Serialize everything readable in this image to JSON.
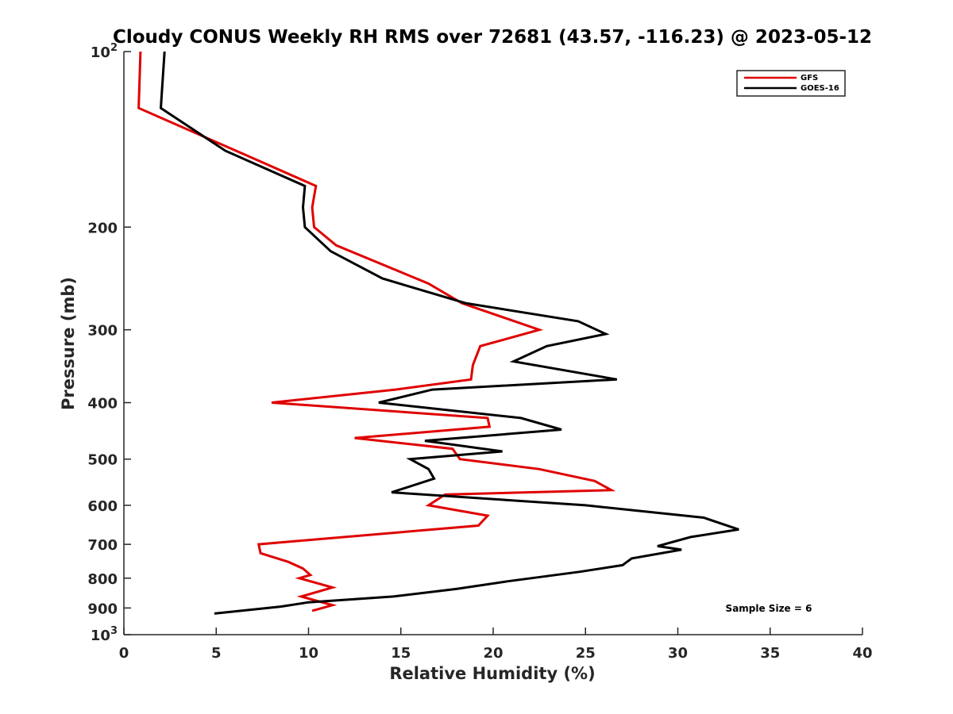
{
  "chart_data": {
    "type": "line",
    "title": "Cloudy CONUS Weekly RH RMS over 72681 (43.57, -116.23) @ 2023-05-12",
    "xlabel": "Relative Humidity (%)",
    "ylabel": "Pressure (mb)",
    "xlim": [
      0,
      40
    ],
    "ylim": [
      100,
      1000
    ],
    "y_scale": "log",
    "y_reversed": true,
    "x_ticks": [
      0,
      5,
      10,
      15,
      20,
      25,
      30,
      35,
      40
    ],
    "x_tick_labels": [
      "0",
      "5",
      "10",
      "15",
      "20",
      "25",
      "30",
      "35",
      "40"
    ],
    "y_ticks": [
      100,
      200,
      300,
      400,
      500,
      600,
      700,
      800,
      900,
      1000
    ],
    "y_tick_labels": [
      {
        "base": "10",
        "exp": "2"
      },
      {
        "base": "200",
        "exp": ""
      },
      {
        "base": "300",
        "exp": ""
      },
      {
        "base": "400",
        "exp": ""
      },
      {
        "base": "500",
        "exp": ""
      },
      {
        "base": "600",
        "exp": ""
      },
      {
        "base": "700",
        "exp": ""
      },
      {
        "base": "800",
        "exp": ""
      },
      {
        "base": "900",
        "exp": ""
      },
      {
        "base": "10",
        "exp": "3"
      }
    ],
    "grid": false,
    "legend_position": "top-right",
    "annotation": "Sample Size = 6",
    "series": [
      {
        "name": "GFS",
        "color": "#e00000",
        "points": [
          [
            0.9,
            100
          ],
          [
            0.8,
            125
          ],
          [
            6.5,
            150
          ],
          [
            10.4,
            170
          ],
          [
            10.2,
            185
          ],
          [
            10.3,
            200
          ],
          [
            11.5,
            215
          ],
          [
            16.5,
            250
          ],
          [
            18.3,
            270
          ],
          [
            22.5,
            300
          ],
          [
            19.3,
            320
          ],
          [
            18.9,
            345
          ],
          [
            18.8,
            365
          ],
          [
            14.7,
            380
          ],
          [
            8.0,
            400
          ],
          [
            19.7,
            425
          ],
          [
            19.8,
            440
          ],
          [
            12.5,
            460
          ],
          [
            17.8,
            480
          ],
          [
            18.2,
            500
          ],
          [
            22.5,
            520
          ],
          [
            25.5,
            545
          ],
          [
            26.4,
            565
          ],
          [
            17.4,
            575
          ],
          [
            16.5,
            600
          ],
          [
            19.7,
            625
          ],
          [
            19.2,
            650
          ],
          [
            7.3,
            700
          ],
          [
            7.4,
            725
          ],
          [
            8.9,
            750
          ],
          [
            9.7,
            770
          ],
          [
            10.1,
            790
          ],
          [
            9.5,
            800
          ],
          [
            11.3,
            830
          ],
          [
            9.6,
            860
          ],
          [
            11.3,
            890
          ],
          [
            10.2,
            910
          ]
        ]
      },
      {
        "name": "GOES-16",
        "color": "#000000",
        "points": [
          [
            2.2,
            100
          ],
          [
            2.0,
            125
          ],
          [
            5.5,
            148
          ],
          [
            9.8,
            170
          ],
          [
            9.7,
            185
          ],
          [
            9.8,
            200
          ],
          [
            11.2,
            220
          ],
          [
            14.0,
            245
          ],
          [
            18.5,
            270
          ],
          [
            24.6,
            290
          ],
          [
            26.1,
            305
          ],
          [
            22.9,
            320
          ],
          [
            21.1,
            340
          ],
          [
            26.7,
            365
          ],
          [
            16.7,
            380
          ],
          [
            13.8,
            400
          ],
          [
            21.5,
            425
          ],
          [
            23.7,
            445
          ],
          [
            16.3,
            465
          ],
          [
            20.5,
            485
          ],
          [
            15.5,
            500
          ],
          [
            16.5,
            520
          ],
          [
            16.8,
            540
          ],
          [
            14.5,
            570
          ],
          [
            25.0,
            600
          ],
          [
            31.4,
            630
          ],
          [
            33.3,
            660
          ],
          [
            30.7,
            680
          ],
          [
            28.9,
            705
          ],
          [
            30.2,
            715
          ],
          [
            27.5,
            740
          ],
          [
            27.0,
            760
          ],
          [
            24.7,
            780
          ],
          [
            20.8,
            810
          ],
          [
            18.0,
            835
          ],
          [
            14.6,
            860
          ],
          [
            10.0,
            880
          ],
          [
            8.5,
            895
          ],
          [
            4.9,
            920
          ]
        ]
      }
    ]
  }
}
